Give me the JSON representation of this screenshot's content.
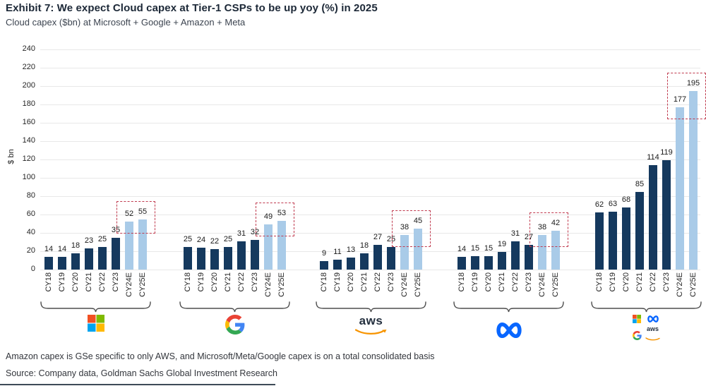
{
  "header": {
    "title": "Exhibit 7: We expect Cloud capex at Tier-1 CSPs to be up yoy (%) in 2025",
    "subtitle": "Cloud capex ($bn) at Microsoft + Google + Amazon + Meta"
  },
  "chart_data": {
    "type": "bar",
    "title": "Cloud capex ($bn) at Microsoft + Google + Amazon + Meta",
    "ylabel": "$ bn",
    "ylim": [
      0,
      240
    ],
    "ytick_step": 20,
    "grid": true,
    "legend_position": "none",
    "categories": [
      "CY18",
      "CY19",
      "CY20",
      "CY21",
      "CY22",
      "CY23",
      "CY24E",
      "CY25E"
    ],
    "estimate_categories": [
      "CY24E",
      "CY25E"
    ],
    "series": [
      {
        "name": "Microsoft",
        "logo": "microsoft",
        "values": [
          14,
          14,
          18,
          23,
          25,
          35,
          52,
          55
        ]
      },
      {
        "name": "Google",
        "logo": "google",
        "values": [
          25,
          24,
          22,
          25,
          31,
          32,
          49,
          53
        ]
      },
      {
        "name": "AWS",
        "logo": "aws",
        "values": [
          9,
          11,
          13,
          18,
          27,
          25,
          38,
          45
        ]
      },
      {
        "name": "Meta",
        "logo": "meta",
        "values": [
          14,
          15,
          15,
          19,
          31,
          27,
          38,
          42
        ]
      },
      {
        "name": "Microsoft + Google + AWS + Meta",
        "logo": "combined",
        "values": [
          62,
          63,
          68,
          85,
          114,
          119,
          177,
          195
        ]
      }
    ],
    "colors": {
      "bar_actual": "#15395e",
      "bar_estimate": "#a9cbe8",
      "highlight_box": "#c03a4e",
      "gridline": "#e8e8e8"
    }
  },
  "footer": {
    "note": "Amazon capex is GSe specific to only AWS, and Microsoft/Meta/Google capex is on a total consolidated basis",
    "source": "Source: Company data, Goldman Sachs Global Investment Research"
  }
}
